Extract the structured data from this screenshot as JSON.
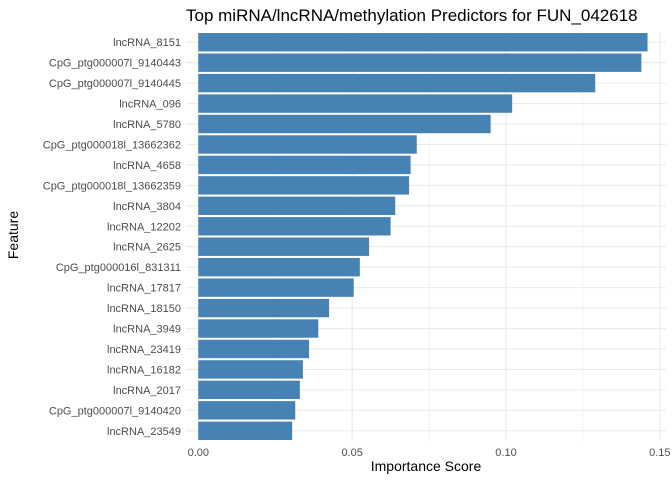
{
  "chart_data": {
    "type": "bar",
    "orientation": "horizontal",
    "title": "Top miRNA/lncRNA/methylation Predictors for FUN_042618",
    "xlabel": "Importance Score",
    "ylabel": "Feature",
    "xlim": [
      -0.004,
      0.152
    ],
    "xticks": [
      0.0,
      0.05,
      0.1,
      0.15
    ],
    "xtick_labels": [
      "0.00",
      "0.05",
      "0.10",
      "0.15"
    ],
    "grid": true,
    "bar_color": "#4682B4",
    "grid_color": "#EBEBEB",
    "categories": [
      "lncRNA_8151",
      "CpG_ptg000007l_9140443",
      "CpG_ptg000007l_9140445",
      "lncRNA_096",
      "lncRNA_5780",
      "CpG_ptg000018l_13662362",
      "lncRNA_4658",
      "CpG_ptg000018l_13662359",
      "lncRNA_3804",
      "lncRNA_12202",
      "lncRNA_2625",
      "CpG_ptg000016l_831311",
      "lncRNA_17817",
      "lncRNA_18150",
      "lncRNA_3949",
      "lncRNA_23419",
      "lncRNA_16182",
      "lncRNA_2017",
      "CpG_ptg000007l_9140420",
      "lncRNA_23549"
    ],
    "values": [
      0.146,
      0.144,
      0.129,
      0.102,
      0.095,
      0.071,
      0.069,
      0.0685,
      0.064,
      0.0625,
      0.0555,
      0.0525,
      0.0505,
      0.0425,
      0.039,
      0.036,
      0.034,
      0.033,
      0.0315,
      0.0305
    ]
  }
}
